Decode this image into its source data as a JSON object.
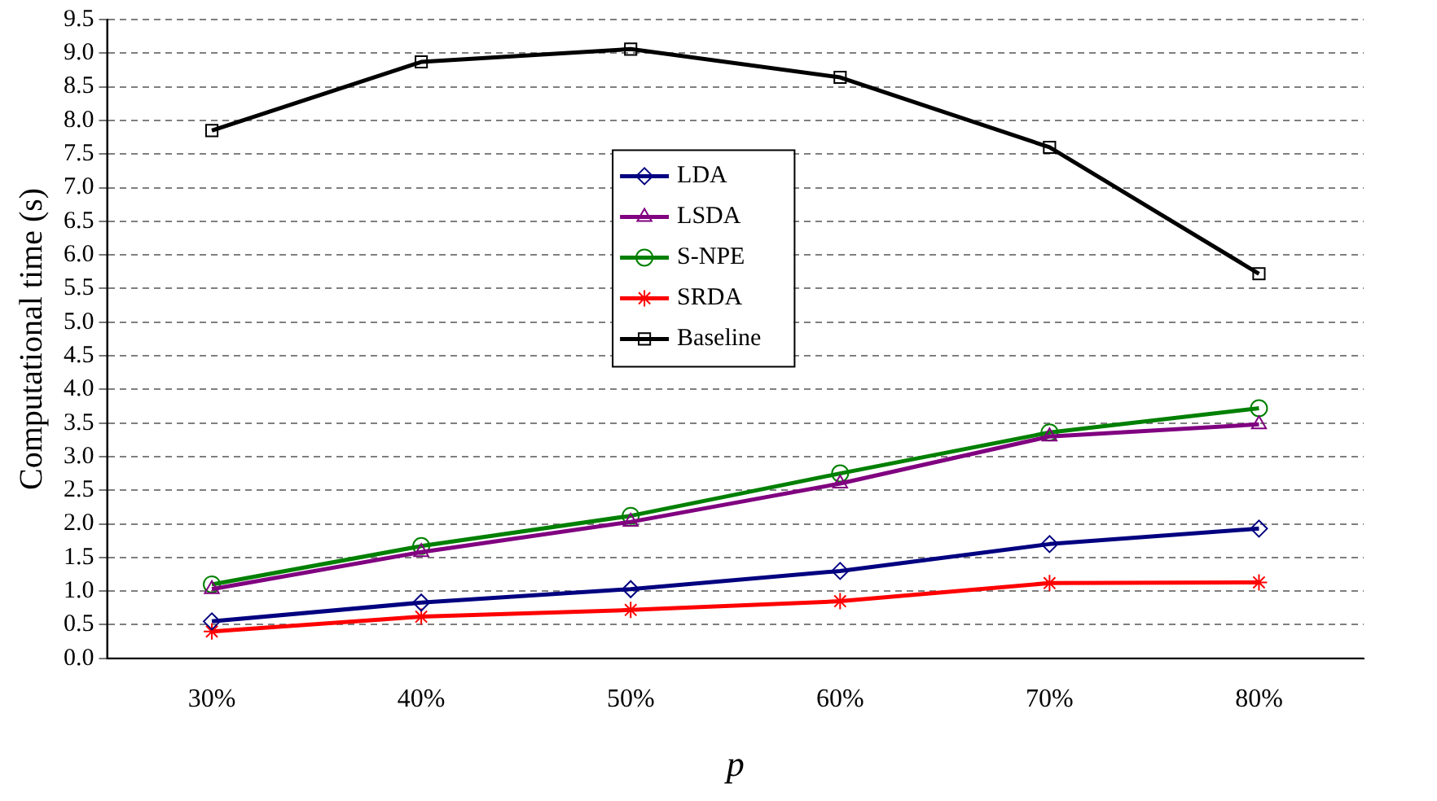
{
  "chart_data": {
    "type": "line",
    "xlabel": "p",
    "ylabel": "Computational time (s)",
    "categories": [
      "30%",
      "40%",
      "50%",
      "60%",
      "70%",
      "80%"
    ],
    "ylim": [
      0,
      9.5
    ],
    "yticks": [
      {
        "value": 0,
        "label": "0.0"
      },
      {
        "value": 0.5,
        "label": "0.5"
      },
      {
        "value": 1,
        "label": "1.0"
      },
      {
        "value": 1.5,
        "label": "1.5"
      },
      {
        "value": 2,
        "label": "2.0"
      },
      {
        "value": 2.5,
        "label": "2.5"
      },
      {
        "value": 3,
        "label": "3.0"
      },
      {
        "value": 3.5,
        "label": "3.5"
      },
      {
        "value": 4,
        "label": "4.0"
      },
      {
        "value": 4.5,
        "label": "4.5"
      },
      {
        "value": 5,
        "label": "5.0"
      },
      {
        "value": 5.5,
        "label": "5.5"
      },
      {
        "value": 6,
        "label": "6.0"
      },
      {
        "value": 6.5,
        "label": "6.5"
      },
      {
        "value": 7,
        "label": "7.0"
      },
      {
        "value": 7.5,
        "label": "7.5"
      },
      {
        "value": 8,
        "label": "8.0"
      },
      {
        "value": 8.5,
        "label": "8.5"
      },
      {
        "value": 9,
        "label": "9.0"
      },
      {
        "value": 9.5,
        "label": "9.5"
      }
    ],
    "grid": "y",
    "legend": "center",
    "line_style": "solid",
    "series": [
      {
        "name": "LDA",
        "color": "#000080",
        "marker": "diamond",
        "values": [
          0.55,
          0.83,
          1.03,
          1.3,
          1.7,
          1.93
        ]
      },
      {
        "name": "LSDA",
        "color": "#800080",
        "marker": "triangle",
        "values": [
          1.03,
          1.58,
          2.03,
          2.6,
          3.3,
          3.48
        ]
      },
      {
        "name": "S-NPE",
        "color": "#008000",
        "marker": "circle",
        "values": [
          1.1,
          1.67,
          2.12,
          2.75,
          3.36,
          3.72
        ]
      },
      {
        "name": "SRDA",
        "color": "#ff0000",
        "marker": "cross",
        "values": [
          0.4,
          0.62,
          0.72,
          0.85,
          1.12,
          1.13
        ]
      },
      {
        "name": "Baseline",
        "color": "#000000",
        "marker": "square",
        "values": [
          7.85,
          8.87,
          9.06,
          8.64,
          7.6,
          5.72
        ]
      }
    ]
  }
}
